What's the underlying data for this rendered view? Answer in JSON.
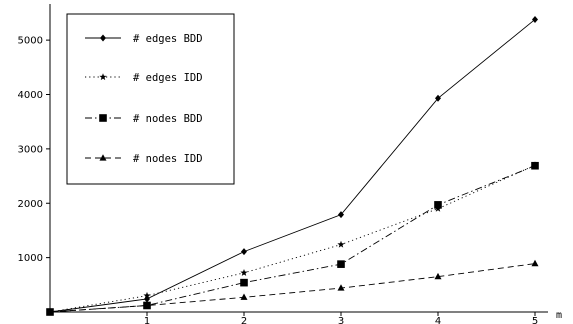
{
  "chart_data": {
    "type": "line",
    "title": "",
    "xlabel": "m",
    "ylabel": "",
    "x": [
      0,
      1,
      2,
      3,
      4,
      5
    ],
    "xlim": [
      0,
      5
    ],
    "ylim": [
      0,
      5600
    ],
    "x_ticks": [
      1,
      2,
      3,
      4,
      5
    ],
    "y_ticks": [
      1000,
      2000,
      3000,
      4000,
      5000
    ],
    "grid": false,
    "legend_position": "top-left",
    "series": [
      {
        "name": "# edges BDD",
        "values": [
          0,
          240,
          1110,
          1790,
          3930,
          5380
        ],
        "line_style": "solid",
        "marker": "diamond",
        "color": "#000000"
      },
      {
        "name": "# edges IDD",
        "values": [
          0,
          300,
          720,
          1240,
          1900,
          2700
        ],
        "line_style": "dotted",
        "marker": "star",
        "color": "#000000"
      },
      {
        "name": "# nodes BDD",
        "values": [
          0,
          120,
          540,
          880,
          1970,
          2690
        ],
        "line_style": "dash-dot",
        "marker": "square",
        "color": "#000000"
      },
      {
        "name": "# nodes IDD",
        "values": [
          0,
          120,
          270,
          440,
          650,
          890
        ],
        "line_style": "dashed",
        "marker": "triangle",
        "color": "#000000"
      }
    ]
  }
}
